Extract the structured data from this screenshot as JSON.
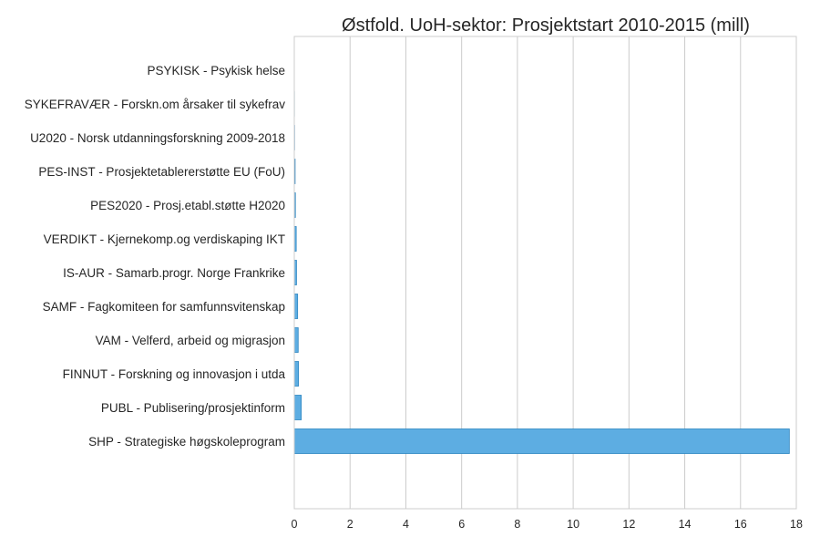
{
  "chart_data": {
    "type": "bar",
    "orientation": "horizontal",
    "title": "Østfold. UoH-sektor: Prosjektstart 2010-2015 (mill)",
    "xlabel": "",
    "ylabel": "",
    "xlim": [
      0,
      18
    ],
    "xticks": [
      0,
      2,
      4,
      6,
      8,
      10,
      12,
      14,
      16,
      18
    ],
    "grid": "vertical",
    "legend": "none",
    "bar_color": "#5DADE2",
    "bar_edge_color": "#2E86C1",
    "categories": [
      "PSYKISK - Psykisk helse",
      "SYKEFRAVÆR - Forskn.om årsaker til sykefrav",
      "U2020 - Norsk utdanningsforskning 2009-2018",
      "PES-INST - Prosjektetablererstøtte EU (FoU)",
      "PES2020 - Prosj.etabl.støtte H2020",
      "VERDIKT - Kjernekomp.og verdiskaping IKT",
      "IS-AUR - Samarb.progr. Norge Frankrike",
      "SAMF - Fagkomiteen for samfunnsvitenskap",
      "VAM - Velferd, arbeid og migrasjon",
      "FINNUT - Forskning og innovasjon i utda",
      "PUBL - Publisering/prosjektinform",
      "SHP - Strategiske høgskoleprogram"
    ],
    "values": [
      0.003,
      0.005,
      0.01,
      0.03,
      0.04,
      0.07,
      0.08,
      0.12,
      0.14,
      0.15,
      0.25,
      17.75
    ]
  }
}
